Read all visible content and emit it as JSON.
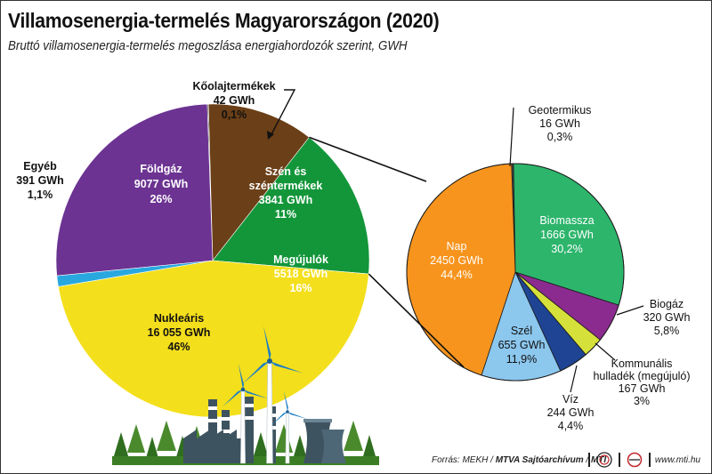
{
  "title": "Villamosenergia-termelés Magyarországon (2020)",
  "subtitle": "Bruttó villamosenergia-termelés megoszlása energiahordozók szerint, GWH",
  "chart_data": [
    {
      "type": "pie",
      "name": "main",
      "slices": [
        {
          "label": "Kőolajtermékek",
          "value": 42,
          "value_text": "42 GWh",
          "pct_text": "0,1%",
          "color": "#3a3a3a"
        },
        {
          "label": "Szén és széntermékek",
          "value": 3841,
          "value_text": "3841 GWh",
          "pct_text": "11%",
          "color": "#6b3f17"
        },
        {
          "label": "Megújulók",
          "value": 5518,
          "value_text": "5518 GWh",
          "pct_text": "16%",
          "color": "#13963a"
        },
        {
          "label": "Nukleáris",
          "value": 16055,
          "value_text": "16 055 GWh",
          "pct_text": "46%",
          "color": "#f4df1c"
        },
        {
          "label": "Egyéb",
          "value": 391,
          "value_text": "391 GWh",
          "pct_text": "1,1%",
          "color": "#29a8e0"
        },
        {
          "label": "Földgáz",
          "value": 9077,
          "value_text": "9077 GWh",
          "pct_text": "26%",
          "color": "#6c3392"
        }
      ]
    },
    {
      "type": "pie",
      "name": "renewables-breakdown",
      "slices": [
        {
          "label": "Geotermikus",
          "value": 16,
          "value_text": "16 GWh",
          "pct_text": "0,3%",
          "color": "#4a4a4a"
        },
        {
          "label": "Biomassza",
          "value": 1666,
          "value_text": "1666 GWh",
          "pct_text": "30,2%",
          "color": "#2db56c"
        },
        {
          "label": "Biogáz",
          "value": 320,
          "value_text": "320 GWh",
          "pct_text": "5,8%",
          "color": "#8b2b8f"
        },
        {
          "label": "Kommunális hulladék (megújuló)",
          "label_lines": [
            "Kommunális",
            "hulladék (megújuló)"
          ],
          "value": 167,
          "value_text": "167 GWh",
          "pct_text": "3%",
          "color": "#d6e03a"
        },
        {
          "label": "Víz",
          "value": 244,
          "value_text": "244 GWh",
          "pct_text": "4,4%",
          "color": "#1f4493"
        },
        {
          "label": "Szél",
          "value": 655,
          "value_text": "655 GWh",
          "pct_text": "11,9%",
          "color": "#8cc7ee"
        },
        {
          "label": "Nap",
          "value": 2450,
          "value_text": "2450 GWh",
          "pct_text": "44,4%",
          "color": "#f7941d"
        }
      ]
    }
  ],
  "main_labels": {
    "koolaj": [
      "Kőolajtermékek",
      "42 GWh",
      "0,1%"
    ],
    "szen": [
      "Szén és",
      "széntermékek",
      "3841 GWh",
      "11%"
    ],
    "megujulok": [
      "Megújulók",
      "5518 GWh",
      "16%"
    ],
    "nuklearis": [
      "Nukleáris",
      "16 055 GWh",
      "46%"
    ],
    "egyeb": [
      "Egyéb",
      "391 GWh",
      "1,1%"
    ],
    "foldgaz": [
      "Földgáz",
      "9077 GWh",
      "26%"
    ]
  },
  "sub_labels": {
    "geotermikus": [
      "Geotermikus",
      "16 GWh",
      "0,3%"
    ],
    "biomassza": [
      "Biomassza",
      "1666 GWh",
      "30,2%"
    ],
    "biogaz": [
      "Biogáz",
      "320 GWh",
      "5,8%"
    ],
    "kommunalis": [
      "Kommunális",
      "hulladék (megújuló)",
      "167 GWh",
      "3%"
    ],
    "viz": [
      "Víz",
      "244 GWh",
      "4,4%"
    ],
    "szel": [
      "Szél",
      "655 GWh",
      "11,9%"
    ],
    "nap": [
      "Nap",
      "2450 GWh",
      "44,4%"
    ]
  },
  "footer": {
    "source_prefix": "Forrás: MEKH / ",
    "source_bold": "MTVA Sajtóarchívum",
    "source_sep": " / ",
    "source_mti": "MTI",
    "site": "www.mti.hu"
  }
}
